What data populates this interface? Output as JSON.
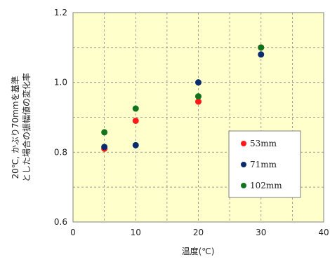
{
  "chart_data": {
    "type": "scatter",
    "title": "",
    "xlabel": "温度(℃)",
    "ylabel_lines": [
      "20℃, かぶり70mmを基準",
      "とした場合の振幅値の変化率"
    ],
    "xlim": [
      0,
      40
    ],
    "ylim": [
      0.6,
      1.2
    ],
    "x_ticks": [
      "0",
      "10",
      "20",
      "30",
      "40"
    ],
    "y_ticks": [
      "0.6",
      "0.8",
      "1.0",
      "1.2"
    ],
    "grid": true,
    "plot_background": "#ffffcc",
    "legend_position": "lower-right",
    "series": [
      {
        "name": "53mm",
        "color": "#ff1a1a",
        "points": [
          {
            "x": 5,
            "y": 0.81
          },
          {
            "x": 10,
            "y": 0.89
          },
          {
            "x": 20,
            "y": 0.945
          },
          {
            "x": 30,
            "y": 1.1
          }
        ]
      },
      {
        "name": "71mm",
        "color": "#0a2a6e",
        "points": [
          {
            "x": 5,
            "y": 0.815
          },
          {
            "x": 10,
            "y": 0.82
          },
          {
            "x": 20,
            "y": 1.0
          },
          {
            "x": 30,
            "y": 1.08
          }
        ]
      },
      {
        "name": "102mm",
        "color": "#11731e",
        "points": [
          {
            "x": 5,
            "y": 0.857
          },
          {
            "x": 10,
            "y": 0.925
          },
          {
            "x": 20,
            "y": 0.96
          },
          {
            "x": 30,
            "y": 1.1
          }
        ]
      }
    ]
  }
}
